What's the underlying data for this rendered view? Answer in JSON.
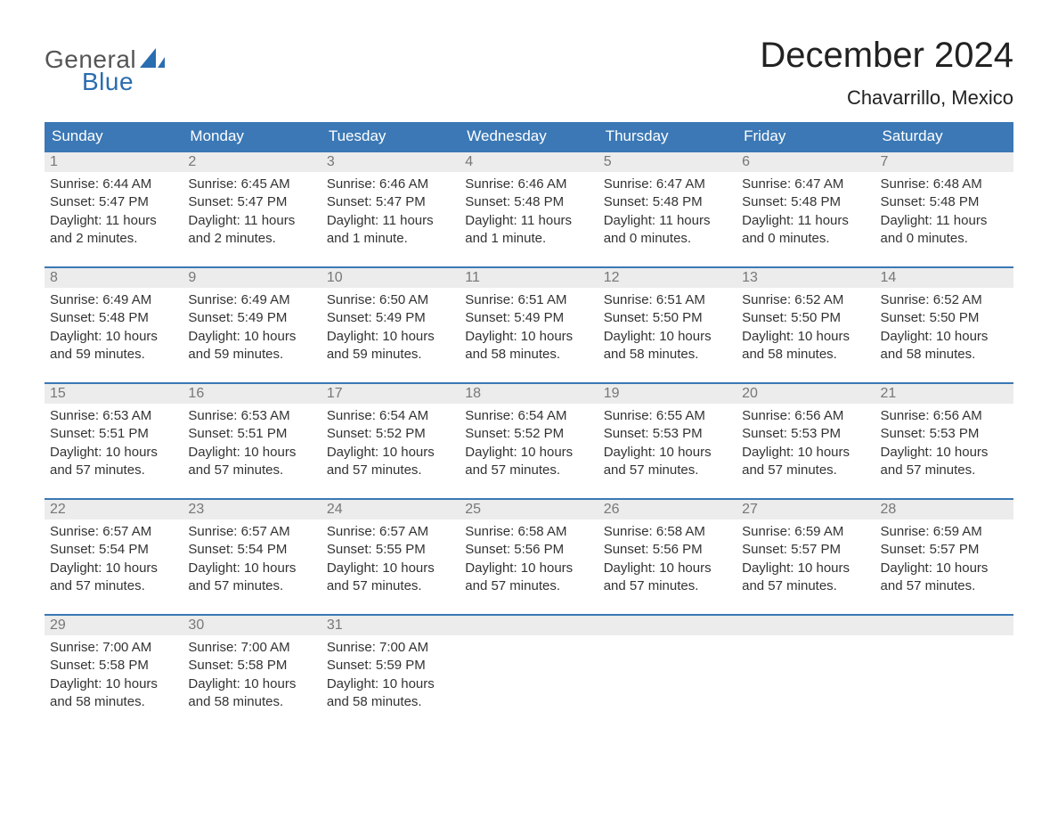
{
  "logo": {
    "text1": "General",
    "text2": "Blue",
    "shape_color": "#2a6db0"
  },
  "title": "December 2024",
  "location": "Chavarrillo, Mexico",
  "colors": {
    "header_bg": "#3b78b5",
    "header_text": "#ffffff",
    "daynum_bg": "#ececec",
    "daynum_text": "#777777",
    "body_text": "#333333",
    "week_border": "#3b78b5",
    "page_bg": "#ffffff"
  },
  "typography": {
    "title_fontsize": 40,
    "location_fontsize": 22,
    "day_header_fontsize": 17,
    "daynum_fontsize": 16,
    "body_fontsize": 15
  },
  "day_headers": [
    "Sunday",
    "Monday",
    "Tuesday",
    "Wednesday",
    "Thursday",
    "Friday",
    "Saturday"
  ],
  "weeks": [
    [
      {
        "n": "1",
        "sunrise": "Sunrise: 6:44 AM",
        "sunset": "Sunset: 5:47 PM",
        "daylight": "Daylight: 11 hours and 2 minutes."
      },
      {
        "n": "2",
        "sunrise": "Sunrise: 6:45 AM",
        "sunset": "Sunset: 5:47 PM",
        "daylight": "Daylight: 11 hours and 2 minutes."
      },
      {
        "n": "3",
        "sunrise": "Sunrise: 6:46 AM",
        "sunset": "Sunset: 5:47 PM",
        "daylight": "Daylight: 11 hours and 1 minute."
      },
      {
        "n": "4",
        "sunrise": "Sunrise: 6:46 AM",
        "sunset": "Sunset: 5:48 PM",
        "daylight": "Daylight: 11 hours and 1 minute."
      },
      {
        "n": "5",
        "sunrise": "Sunrise: 6:47 AM",
        "sunset": "Sunset: 5:48 PM",
        "daylight": "Daylight: 11 hours and 0 minutes."
      },
      {
        "n": "6",
        "sunrise": "Sunrise: 6:47 AM",
        "sunset": "Sunset: 5:48 PM",
        "daylight": "Daylight: 11 hours and 0 minutes."
      },
      {
        "n": "7",
        "sunrise": "Sunrise: 6:48 AM",
        "sunset": "Sunset: 5:48 PM",
        "daylight": "Daylight: 11 hours and 0 minutes."
      }
    ],
    [
      {
        "n": "8",
        "sunrise": "Sunrise: 6:49 AM",
        "sunset": "Sunset: 5:48 PM",
        "daylight": "Daylight: 10 hours and 59 minutes."
      },
      {
        "n": "9",
        "sunrise": "Sunrise: 6:49 AM",
        "sunset": "Sunset: 5:49 PM",
        "daylight": "Daylight: 10 hours and 59 minutes."
      },
      {
        "n": "10",
        "sunrise": "Sunrise: 6:50 AM",
        "sunset": "Sunset: 5:49 PM",
        "daylight": "Daylight: 10 hours and 59 minutes."
      },
      {
        "n": "11",
        "sunrise": "Sunrise: 6:51 AM",
        "sunset": "Sunset: 5:49 PM",
        "daylight": "Daylight: 10 hours and 58 minutes."
      },
      {
        "n": "12",
        "sunrise": "Sunrise: 6:51 AM",
        "sunset": "Sunset: 5:50 PM",
        "daylight": "Daylight: 10 hours and 58 minutes."
      },
      {
        "n": "13",
        "sunrise": "Sunrise: 6:52 AM",
        "sunset": "Sunset: 5:50 PM",
        "daylight": "Daylight: 10 hours and 58 minutes."
      },
      {
        "n": "14",
        "sunrise": "Sunrise: 6:52 AM",
        "sunset": "Sunset: 5:50 PM",
        "daylight": "Daylight: 10 hours and 58 minutes."
      }
    ],
    [
      {
        "n": "15",
        "sunrise": "Sunrise: 6:53 AM",
        "sunset": "Sunset: 5:51 PM",
        "daylight": "Daylight: 10 hours and 57 minutes."
      },
      {
        "n": "16",
        "sunrise": "Sunrise: 6:53 AM",
        "sunset": "Sunset: 5:51 PM",
        "daylight": "Daylight: 10 hours and 57 minutes."
      },
      {
        "n": "17",
        "sunrise": "Sunrise: 6:54 AM",
        "sunset": "Sunset: 5:52 PM",
        "daylight": "Daylight: 10 hours and 57 minutes."
      },
      {
        "n": "18",
        "sunrise": "Sunrise: 6:54 AM",
        "sunset": "Sunset: 5:52 PM",
        "daylight": "Daylight: 10 hours and 57 minutes."
      },
      {
        "n": "19",
        "sunrise": "Sunrise: 6:55 AM",
        "sunset": "Sunset: 5:53 PM",
        "daylight": "Daylight: 10 hours and 57 minutes."
      },
      {
        "n": "20",
        "sunrise": "Sunrise: 6:56 AM",
        "sunset": "Sunset: 5:53 PM",
        "daylight": "Daylight: 10 hours and 57 minutes."
      },
      {
        "n": "21",
        "sunrise": "Sunrise: 6:56 AM",
        "sunset": "Sunset: 5:53 PM",
        "daylight": "Daylight: 10 hours and 57 minutes."
      }
    ],
    [
      {
        "n": "22",
        "sunrise": "Sunrise: 6:57 AM",
        "sunset": "Sunset: 5:54 PM",
        "daylight": "Daylight: 10 hours and 57 minutes."
      },
      {
        "n": "23",
        "sunrise": "Sunrise: 6:57 AM",
        "sunset": "Sunset: 5:54 PM",
        "daylight": "Daylight: 10 hours and 57 minutes."
      },
      {
        "n": "24",
        "sunrise": "Sunrise: 6:57 AM",
        "sunset": "Sunset: 5:55 PM",
        "daylight": "Daylight: 10 hours and 57 minutes."
      },
      {
        "n": "25",
        "sunrise": "Sunrise: 6:58 AM",
        "sunset": "Sunset: 5:56 PM",
        "daylight": "Daylight: 10 hours and 57 minutes."
      },
      {
        "n": "26",
        "sunrise": "Sunrise: 6:58 AM",
        "sunset": "Sunset: 5:56 PM",
        "daylight": "Daylight: 10 hours and 57 minutes."
      },
      {
        "n": "27",
        "sunrise": "Sunrise: 6:59 AM",
        "sunset": "Sunset: 5:57 PM",
        "daylight": "Daylight: 10 hours and 57 minutes."
      },
      {
        "n": "28",
        "sunrise": "Sunrise: 6:59 AM",
        "sunset": "Sunset: 5:57 PM",
        "daylight": "Daylight: 10 hours and 57 minutes."
      }
    ],
    [
      {
        "n": "29",
        "sunrise": "Sunrise: 7:00 AM",
        "sunset": "Sunset: 5:58 PM",
        "daylight": "Daylight: 10 hours and 58 minutes."
      },
      {
        "n": "30",
        "sunrise": "Sunrise: 7:00 AM",
        "sunset": "Sunset: 5:58 PM",
        "daylight": "Daylight: 10 hours and 58 minutes."
      },
      {
        "n": "31",
        "sunrise": "Sunrise: 7:00 AM",
        "sunset": "Sunset: 5:59 PM",
        "daylight": "Daylight: 10 hours and 58 minutes."
      },
      {
        "n": "",
        "empty": true
      },
      {
        "n": "",
        "empty": true
      },
      {
        "n": "",
        "empty": true
      },
      {
        "n": "",
        "empty": true
      }
    ]
  ]
}
